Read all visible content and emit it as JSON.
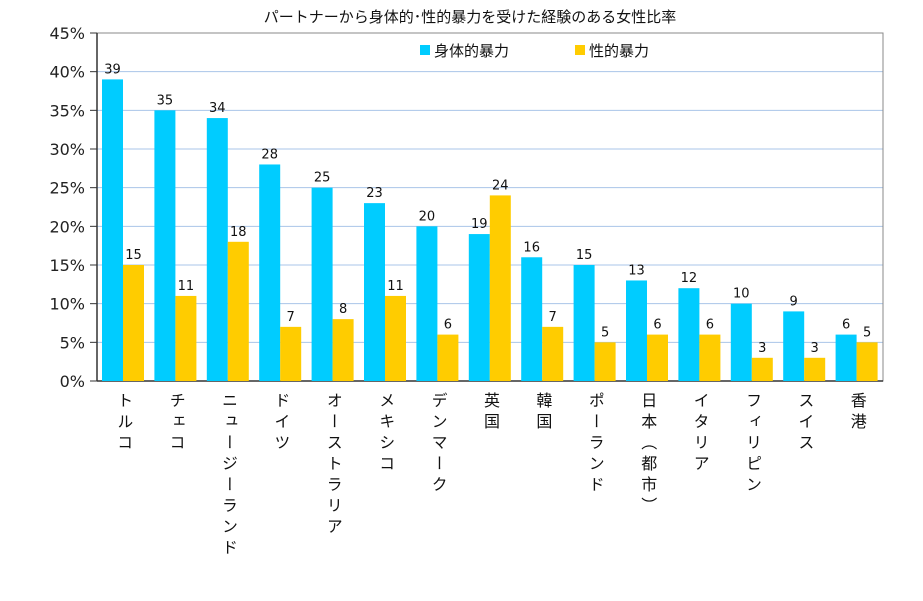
{
  "chart_data": {
    "type": "bar",
    "title": "パートナーから身体的･性的暴力を受けた経験のある女性比率",
    "xlabel": "",
    "ylabel": "",
    "ylim": [
      0,
      45
    ],
    "yticks": [
      "0%",
      "5%",
      "10%",
      "15%",
      "20%",
      "25%",
      "30%",
      "35%",
      "40%",
      "45%"
    ],
    "grid": true,
    "legend_position": "top-right",
    "categories": [
      "トルコ",
      "チェコ",
      "ニュージーランド",
      "ドイツ",
      "オーストラリア",
      "メキシコ",
      "デンマーク",
      "英国",
      "韓国",
      "ポーランド",
      "日本（都市）",
      "イタリア",
      "フィリピン",
      "スイス",
      "香港"
    ],
    "series": [
      {
        "name": "身体的暴力",
        "color": "#00CCFF",
        "values": [
          39,
          35,
          34,
          28,
          25,
          23,
          20,
          19,
          16,
          15,
          13,
          12,
          10,
          9,
          6
        ]
      },
      {
        "name": "性的暴力",
        "color": "#FFCC00",
        "values": [
          15,
          11,
          18,
          7,
          8,
          11,
          6,
          24,
          7,
          5,
          6,
          6,
          3,
          3,
          5
        ]
      }
    ]
  }
}
